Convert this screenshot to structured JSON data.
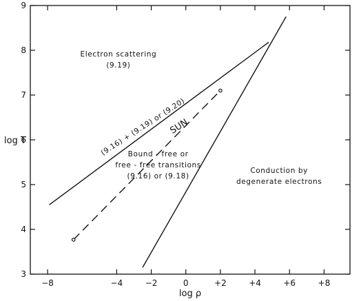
{
  "chart_data": {
    "type": "line",
    "xlabel": "log ρ",
    "ylabel": "log T",
    "xlim": [
      -9,
      9.5
    ],
    "ylim": [
      3,
      9
    ],
    "xticks": [
      -8,
      -4,
      -2,
      0,
      2,
      4,
      6,
      8
    ],
    "xtick_labels": [
      "−8",
      "−4",
      "−2",
      "0",
      "+2",
      "+4",
      "+6",
      "+8"
    ],
    "yticks": [
      3,
      4,
      5,
      6,
      7,
      8,
      9
    ],
    "ytick_labels": [
      "3",
      "4",
      "5",
      "6",
      "7",
      "8",
      "9"
    ],
    "grid": false,
    "series": [
      {
        "id": "boundary-scatter",
        "style": "solid",
        "x": [
          -7.9,
          4.8
        ],
        "y": [
          4.55,
          8.18
        ]
      },
      {
        "id": "boundary-degenerate",
        "style": "solid",
        "x": [
          -2.5,
          5.8
        ],
        "y": [
          3.15,
          8.75
        ]
      },
      {
        "id": "sun",
        "style": "dashed",
        "x": [
          -6.5,
          2.0
        ],
        "y": [
          3.77,
          7.1
        ],
        "endpoint_markers": true
      }
    ],
    "annotations": [
      {
        "id": "electron-scattering",
        "lines": [
          "Electron scattering",
          "(9.19)"
        ],
        "x": -3.9,
        "y": 7.8,
        "angle": 0
      },
      {
        "id": "scatter-boundary-eq",
        "lines": [
          "(9.16) + (9.19) or (9.20)"
        ],
        "x": -2.5,
        "y": 6.3,
        "angle": -33
      },
      {
        "id": "sun-label",
        "lines": [
          "SUN"
        ],
        "x": -0.4,
        "y": 6.3,
        "angle": -33
      },
      {
        "id": "bound-free",
        "lines": [
          "Bound - free   or",
          "free - free  transitions",
          "(9.16) or (9.18)"
        ],
        "x": -1.6,
        "y": 5.45,
        "angle": 0
      },
      {
        "id": "conduction",
        "lines": [
          "Conduction     by",
          "degenerate  electrons"
        ],
        "x": 5.4,
        "y": 5.2,
        "angle": 0
      }
    ]
  }
}
